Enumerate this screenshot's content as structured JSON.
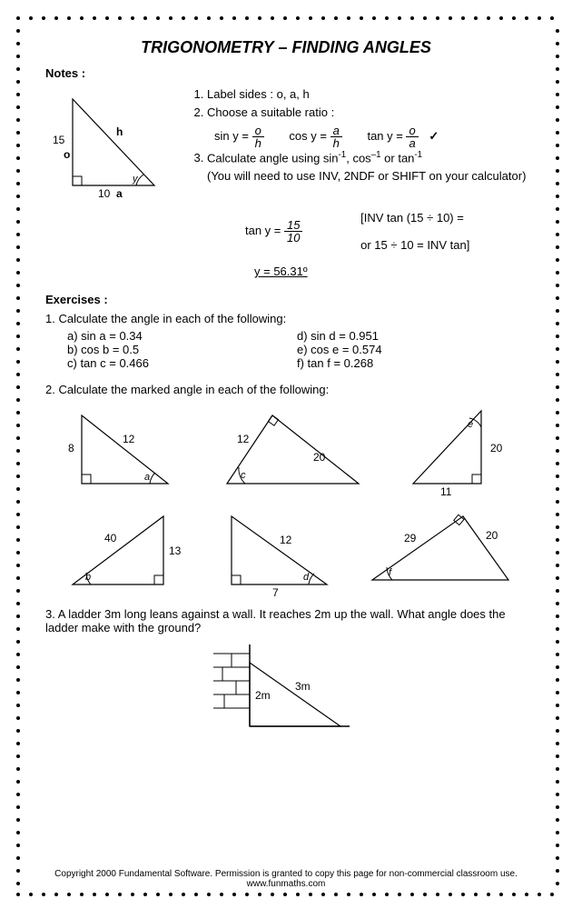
{
  "title": "TRIGONOMETRY – FINDING ANGLES",
  "notes_label": "Notes :",
  "notes": {
    "step1": "Label sides : o, a, h",
    "step2": "Choose a suitable ratio :",
    "ratio_sin_lhs": "sin y =",
    "ratio_sin_num": "o",
    "ratio_sin_den": "h",
    "ratio_cos_lhs": "cos y =",
    "ratio_cos_num": "a",
    "ratio_cos_den": "h",
    "ratio_tan_lhs": "tan y =",
    "ratio_tan_num": "o",
    "ratio_tan_den": "a",
    "check": "✓",
    "step3a": "Calculate angle using sin",
    "step3b": ", cos",
    "step3c": " or tan",
    "step3_note": "(You will need to use INV, 2NDF or SHIFT on your calculator)",
    "work_tan_lhs": "tan y =",
    "work_tan_num": "15",
    "work_tan_den": "10",
    "work_bracket_a": "[INV tan (15 ÷ 10) =",
    "work_bracket_b": "or 15 ÷ 10 = INV tan]",
    "answer": "y = 56.31º"
  },
  "tri_notes": {
    "o_label": "o",
    "a_label": "a",
    "h_label": "h",
    "side_o": "15",
    "side_a": "10",
    "angle": "y"
  },
  "exercises_label": "Exercises :",
  "ex1": {
    "q": "1.  Calculate the angle in each of the following:",
    "a": "a)   sin a = 0.34",
    "b": "b)   cos b = 0.5",
    "c": "c)   tan c = 0.466",
    "d": "d)   sin d = 0.951",
    "e": "e)   cos e = 0.574",
    "f": "f)   tan f = 0.268"
  },
  "ex2": {
    "q": "2.  Calculate the marked angle in each of the following:",
    "triangles": [
      {
        "type": "right",
        "side1": "8",
        "side2": "12",
        "angle": "a"
      },
      {
        "type": "obtuse",
        "side1": "12",
        "side2": "20",
        "angle": "c"
      },
      {
        "type": "right2",
        "side1": "20",
        "side2": "11",
        "angle": "e"
      },
      {
        "type": "right3",
        "side1": "40",
        "side2": "13",
        "angle": "b"
      },
      {
        "type": "right4",
        "side1": "12",
        "side2": "7",
        "angle": "d"
      },
      {
        "type": "obtuse2",
        "side1": "29",
        "side2": "20",
        "angle": "f"
      }
    ]
  },
  "ex3": {
    "q": "3.  A ladder 3m long leans against a wall.  It reaches 2m up the wall.  What angle does the ladder make with the ground?",
    "h": "3m",
    "v": "2m"
  },
  "footer_a": "Copyright 2000 Fundamental Software.    Permission is granted to copy this page for non-commercial classroom use.",
  "footer_b": "www.funmaths.com",
  "colors": {
    "fg": "#000000",
    "bg": "#ffffff"
  }
}
